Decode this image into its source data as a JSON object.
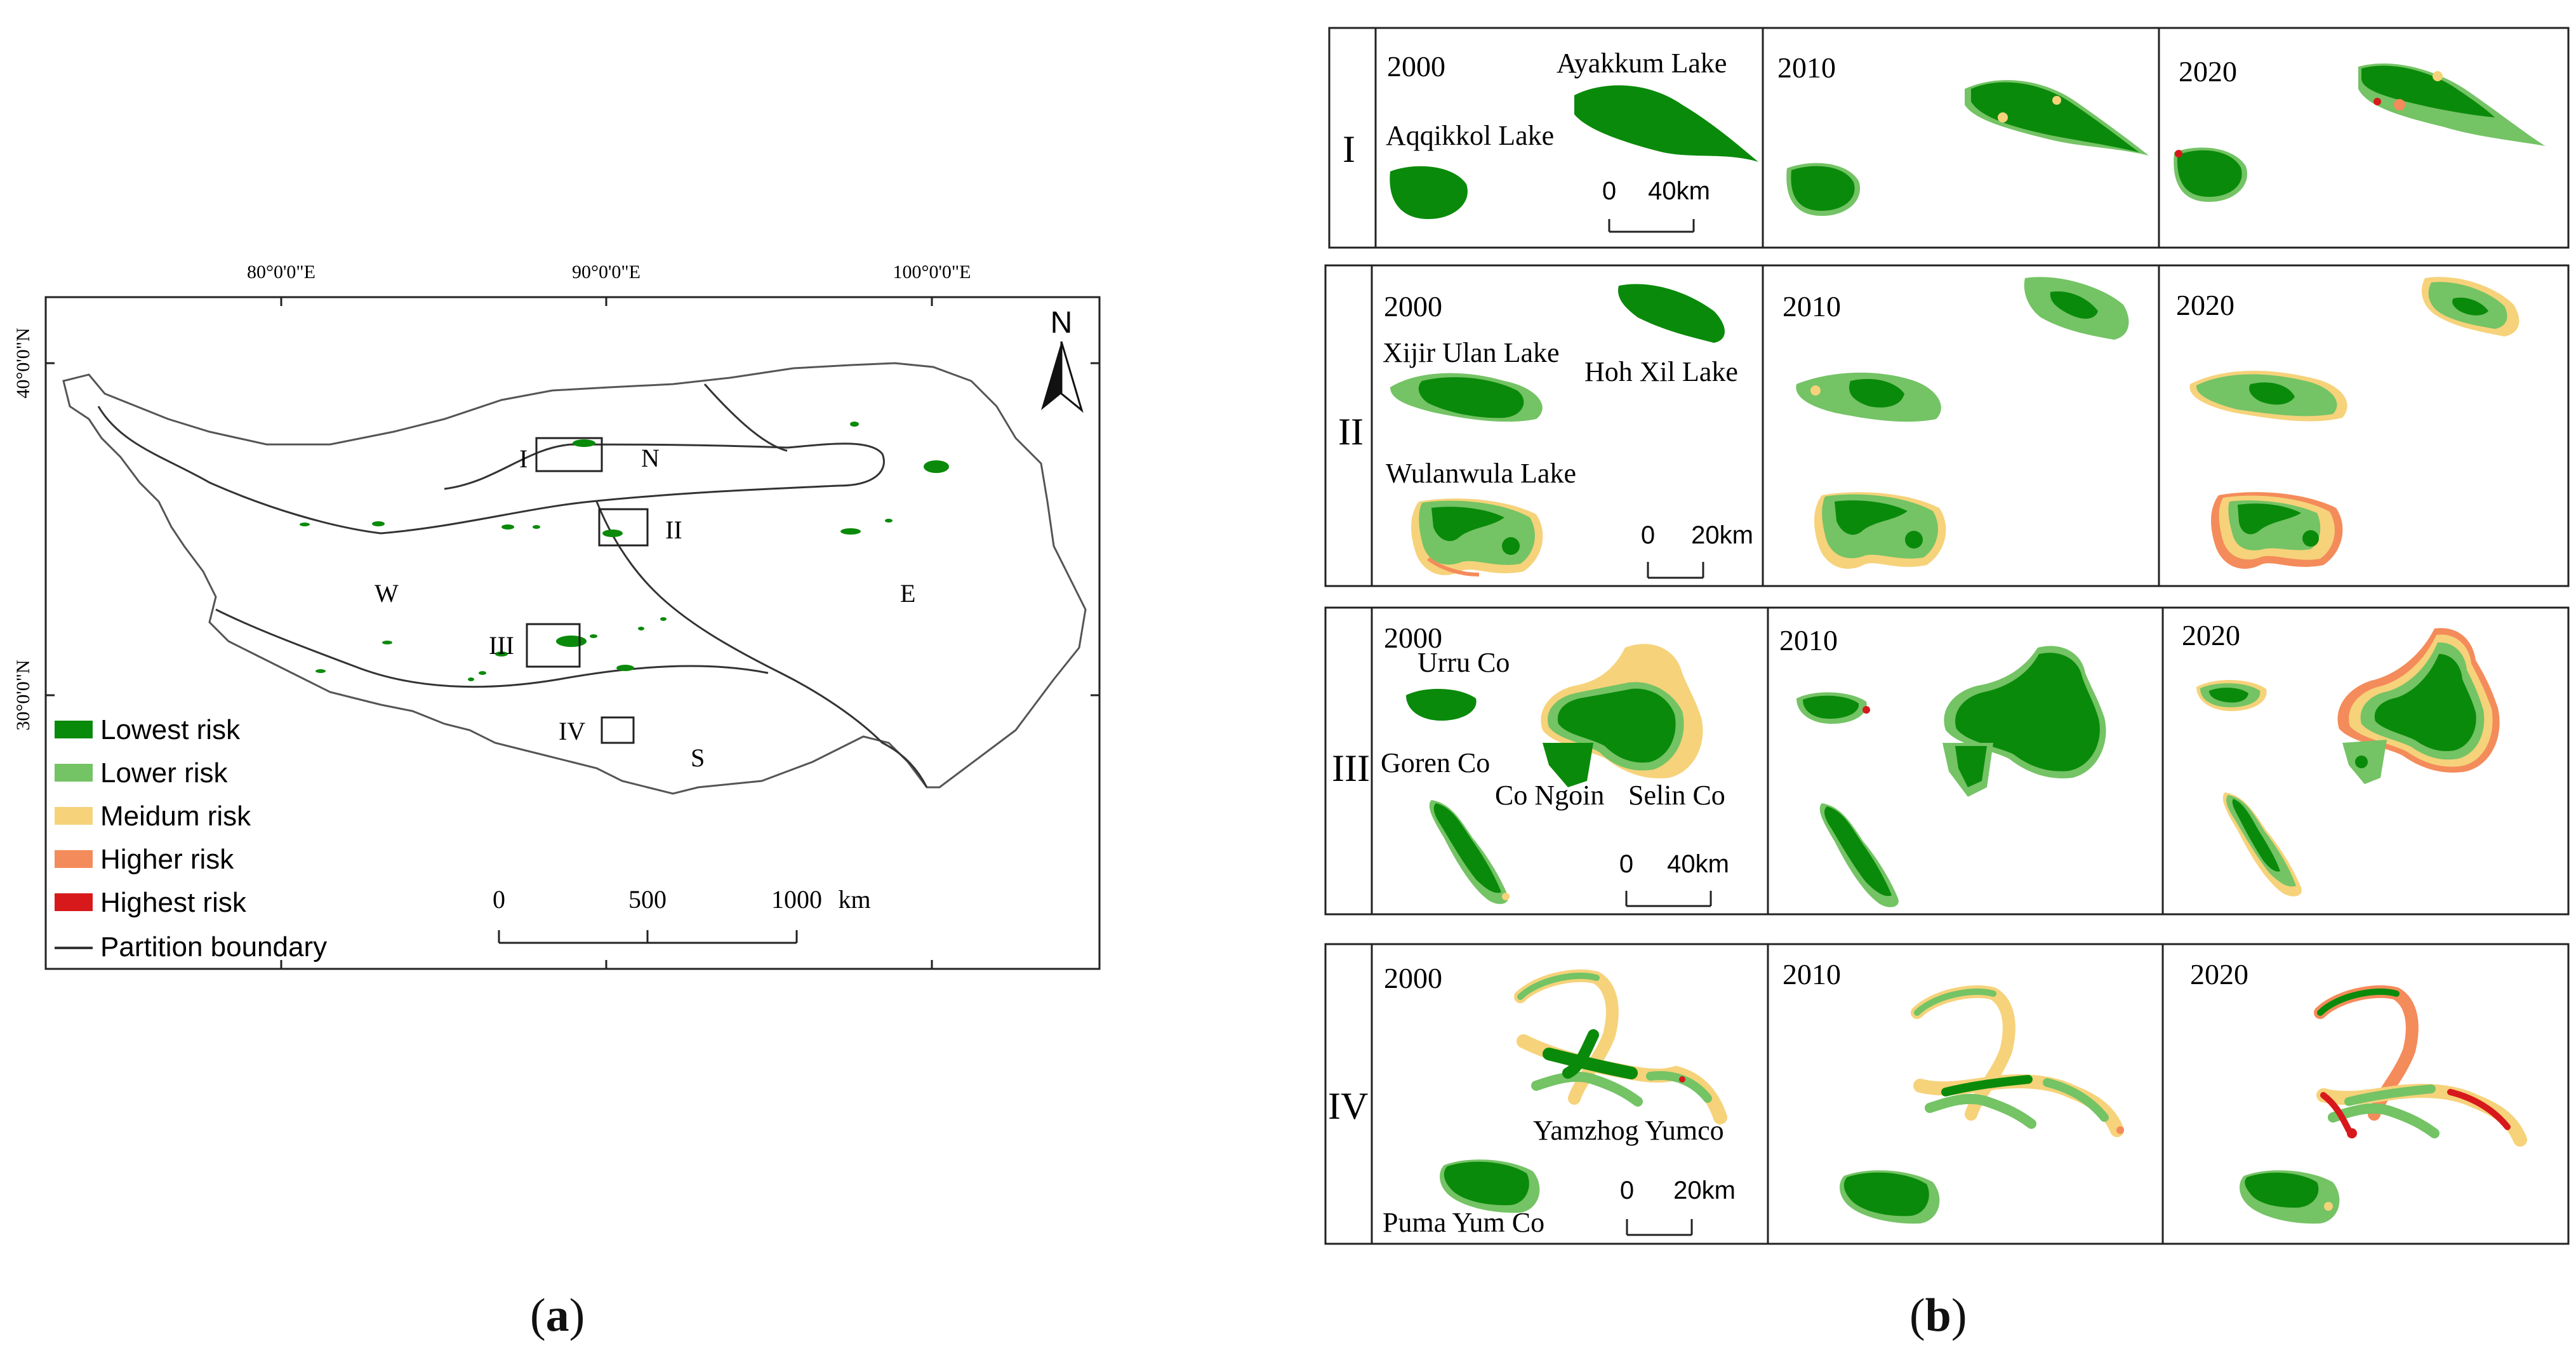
{
  "panel_a": {
    "caption_open": "(",
    "caption_letter": "a",
    "caption_close": ")",
    "lon_labels": [
      "80°0'0\"E",
      "90°0'0\"E",
      "100°0'0\"E"
    ],
    "lat_labels": [
      "40°0'0\"N",
      "30°0'0\"N"
    ],
    "north_label": "N",
    "zones": {
      "W": "W",
      "N": "N",
      "E": "E",
      "S": "S"
    },
    "boxes": {
      "I": "I",
      "II": "II",
      "III": "III",
      "IV": "IV"
    },
    "legend": [
      {
        "label": "Lowest risk",
        "color": "#0a8a0a"
      },
      {
        "label": "Lower risk",
        "color": "#74c365"
      },
      {
        "label": "Meidum risk",
        "color": "#f6d27a"
      },
      {
        "label": "Higher risk",
        "color": "#f48b5a"
      },
      {
        "label": "Highest risk",
        "color": "#d7191c"
      },
      {
        "label": "Partition boundary",
        "color": "#333333"
      }
    ],
    "scale": {
      "t0": "0",
      "t500": "500",
      "t1000": "1000",
      "unit": "km"
    }
  },
  "panel_b": {
    "caption_open": "(",
    "caption_letter": "b",
    "caption_close": ")",
    "rows": [
      {
        "id": "I",
        "years": [
          "2000",
          "2010",
          "2020"
        ],
        "lakes": [
          "Ayakkum Lake",
          "Aqqikkol Lake"
        ],
        "scale_0": "0",
        "scale_d": "40km"
      },
      {
        "id": "II",
        "years": [
          "2000",
          "2010",
          "2020"
        ],
        "lakes": [
          "Xijir Ulan Lake",
          "Hoh Xil Lake",
          "Wulanwula Lake"
        ],
        "scale_0": "0",
        "scale_d": "20km"
      },
      {
        "id": "III",
        "years": [
          "2000",
          "2010",
          "2020"
        ],
        "lakes": [
          "Urru Co",
          "Goren Co",
          "Co Ngoin",
          "Selin Co"
        ],
        "scale_0": "0",
        "scale_d": "40km"
      },
      {
        "id": "IV",
        "years": [
          "2000",
          "2010",
          "2020"
        ],
        "lakes": [
          "Yamzhog Yumco",
          "Puma Yum Co"
        ],
        "scale_0": "0",
        "scale_d": "20km"
      }
    ]
  }
}
